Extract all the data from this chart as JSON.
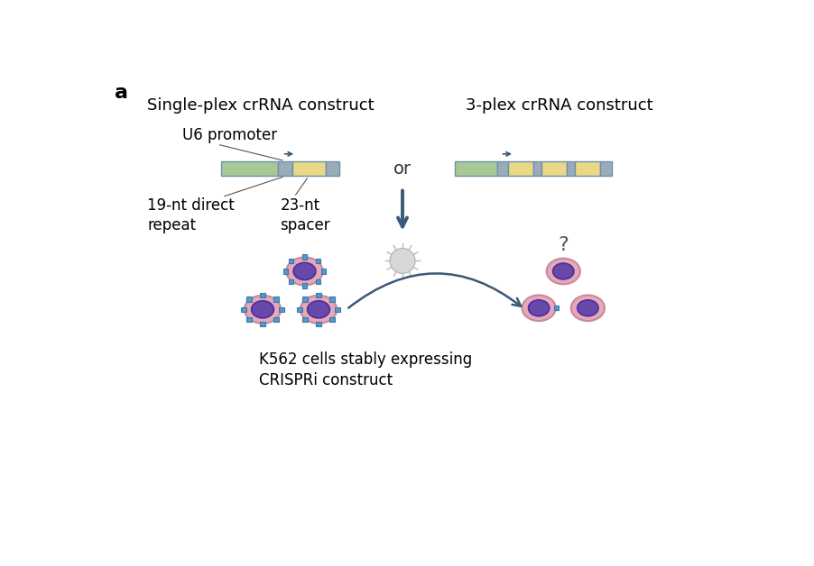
{
  "bg_color": "#ffffff",
  "title_a": "a",
  "label_single": "Single-plex crRNA construct",
  "label_3plex": "3-plex crRNA construct",
  "label_u6": "U6 promoter",
  "label_19nt": "19-nt direct\nrepeat",
  "label_23nt": "23-nt\nspacer",
  "label_or": "or",
  "label_k562": "K562 cells stably expressing\nCRISPRi construct",
  "label_q": "?",
  "color_green": "#a8c896",
  "color_yellow": "#e8d888",
  "color_gray": "#9aacb8",
  "color_outline": "#7090a8",
  "color_cell_outer": "#e8a8b8",
  "color_cell_outer_edge": "#c888a0",
  "color_cell_inner": "#6848a8",
  "color_cell_inner_edge": "#4830a0",
  "color_receptor": "#5898c8",
  "color_receptor_edge": "#3878b0",
  "color_arrow": "#3a5878",
  "color_virus": "#d8d8d8",
  "color_virus_ray": "#b8b8b8",
  "font_size_title": 16,
  "font_size_label": 13,
  "font_size_small": 12
}
